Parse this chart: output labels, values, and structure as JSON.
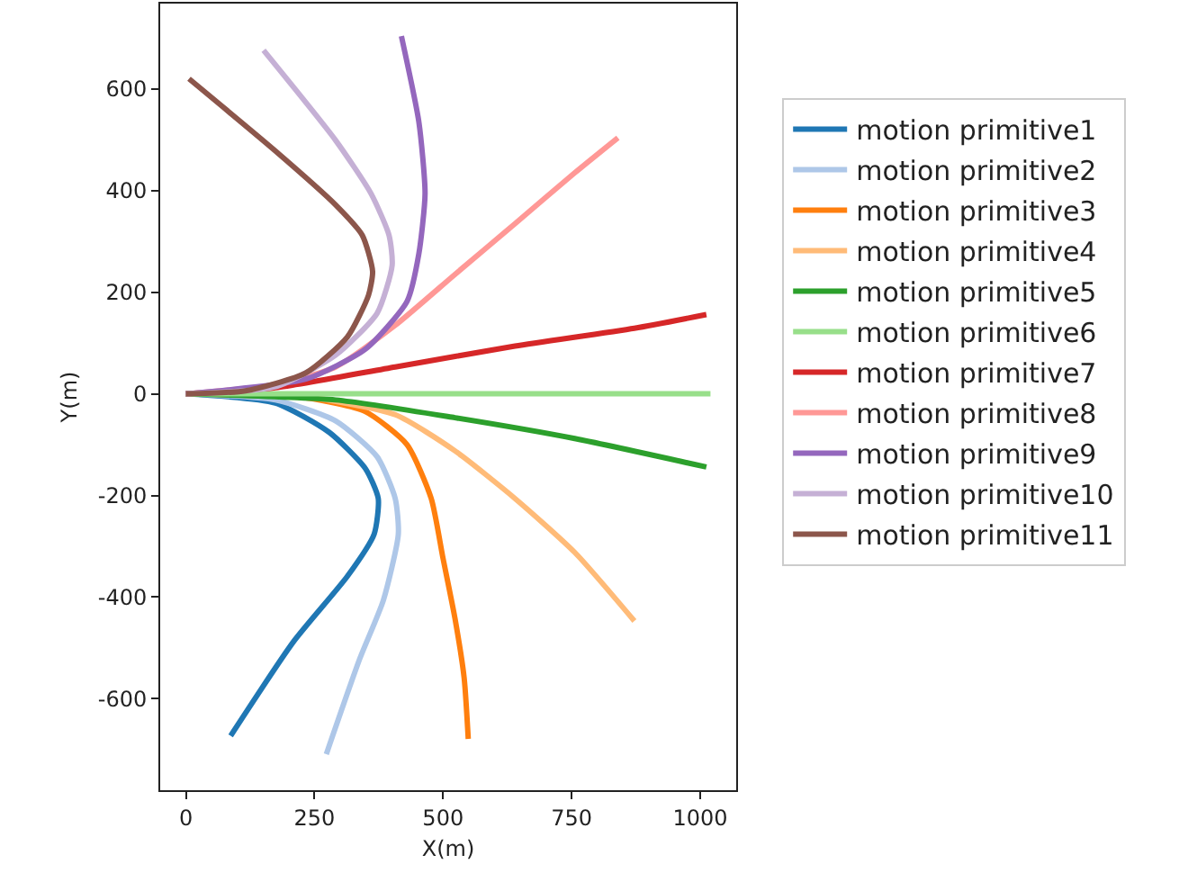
{
  "chart_data": {
    "type": "line",
    "xlabel": "X(m)",
    "ylabel": "Y(m)",
    "xlim": [
      -50,
      1070
    ],
    "xticks": [
      0,
      250,
      500,
      750,
      1000
    ],
    "ylim": [
      -780,
      768
    ],
    "yticks": [
      -600,
      -400,
      -200,
      0,
      200,
      400,
      600
    ],
    "grid": false,
    "legend": "right",
    "marker": "none",
    "line_style": "solid",
    "series": [
      {
        "name": "motion primitive1",
        "color": "#1f77b4",
        "x": [
          0,
          174,
          279,
          349,
          374,
          366,
          314,
          209,
          87
        ],
        "values": [
          0,
          -18,
          -76,
          -147,
          -206,
          -276,
          -359,
          -488,
          -673
        ]
      },
      {
        "name": "motion primitive2",
        "color": "#aec7e8",
        "x": [
          0,
          174,
          291,
          372,
          407,
          413,
          384,
          337,
          273
        ],
        "values": [
          0,
          -12,
          -53,
          -124,
          -206,
          -276,
          -406,
          -524,
          -709
        ]
      },
      {
        "name": "motion primitive3",
        "color": "#ff7f0e",
        "x": [
          0,
          233,
          349,
          430,
          477,
          500,
          523,
          541,
          549
        ],
        "values": [
          0,
          -8,
          -35,
          -100,
          -206,
          -324,
          -441,
          -559,
          -679
        ]
      },
      {
        "name": "motion primitive4",
        "color": "#ffbb78",
        "x": [
          0,
          233,
          407,
          523,
          640,
          756,
          872
        ],
        "values": [
          0,
          -6,
          -41,
          -112,
          -206,
          -312,
          -447
        ]
      },
      {
        "name": "motion primitive5",
        "color": "#2ca02c",
        "x": [
          0,
          291,
          523,
          756,
          1012
        ],
        "values": [
          0,
          -12,
          -47,
          -88,
          -144
        ]
      },
      {
        "name": "motion primitive6",
        "color": "#98df8a",
        "x": [
          0,
          1020
        ],
        "values": [
          0,
          0
        ]
      },
      {
        "name": "motion primitive7",
        "color": "#d62728",
        "x": [
          0,
          174,
          407,
          640,
          872,
          1012
        ],
        "values": [
          0,
          12,
          53,
          94,
          129,
          156
        ]
      },
      {
        "name": "motion primitive8",
        "color": "#ff9896",
        "x": [
          0,
          174,
          291,
          407,
          523,
          640,
          756,
          840
        ],
        "values": [
          0,
          18,
          53,
          135,
          235,
          335,
          435,
          504
        ]
      },
      {
        "name": "motion primitive9",
        "color": "#9467bd",
        "x": [
          0,
          233,
          349,
          430,
          453,
          465,
          453,
          419
        ],
        "values": [
          0,
          29,
          88,
          182,
          276,
          394,
          535,
          704
        ]
      },
      {
        "name": "motion primitive10",
        "color": "#c5b0d5",
        "x": [
          0,
          174,
          291,
          372,
          401,
          395,
          360,
          291,
          151
        ],
        "values": [
          0,
          14,
          76,
          159,
          253,
          312,
          394,
          499,
          676
        ]
      },
      {
        "name": "motion primitive11",
        "color": "#8c564b",
        "x": [
          0,
          116,
          233,
          314,
          355,
          363,
          343,
          291,
          174,
          6
        ],
        "values": [
          0,
          6,
          41,
          112,
          194,
          241,
          312,
          372,
          478,
          620
        ]
      }
    ]
  }
}
